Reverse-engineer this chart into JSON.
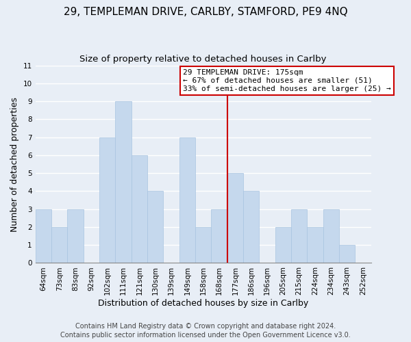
{
  "title": "29, TEMPLEMAN DRIVE, CARLBY, STAMFORD, PE9 4NQ",
  "subtitle": "Size of property relative to detached houses in Carlby",
  "xlabel": "Distribution of detached houses by size in Carlby",
  "ylabel": "Number of detached properties",
  "bar_labels": [
    "64sqm",
    "73sqm",
    "83sqm",
    "92sqm",
    "102sqm",
    "111sqm",
    "121sqm",
    "130sqm",
    "139sqm",
    "149sqm",
    "158sqm",
    "168sqm",
    "177sqm",
    "186sqm",
    "196sqm",
    "205sqm",
    "215sqm",
    "224sqm",
    "234sqm",
    "243sqm",
    "252sqm"
  ],
  "bar_values": [
    3,
    2,
    3,
    0,
    7,
    9,
    6,
    4,
    0,
    7,
    2,
    3,
    5,
    4,
    0,
    2,
    3,
    2,
    3,
    1,
    0
  ],
  "bar_color": "#c5d8ed",
  "bar_edge_color": "#a8c4e0",
  "background_color": "#e8eef6",
  "plot_bg_color": "#e8eef6",
  "grid_color": "#ffffff",
  "vline_position": 12.0,
  "vline_color": "#cc0000",
  "annotation_title": "29 TEMPLEMAN DRIVE: 175sqm",
  "annotation_line1": "← 67% of detached houses are smaller (51)",
  "annotation_line2": "33% of semi-detached houses are larger (25) →",
  "annotation_box_color": "#ffffff",
  "annotation_border_color": "#cc0000",
  "ylim": [
    0,
    11
  ],
  "yticks": [
    0,
    1,
    2,
    3,
    4,
    5,
    6,
    7,
    8,
    9,
    10,
    11
  ],
  "footer_line1": "Contains HM Land Registry data © Crown copyright and database right 2024.",
  "footer_line2": "Contains public sector information licensed under the Open Government Licence v3.0.",
  "title_fontsize": 11,
  "subtitle_fontsize": 9.5,
  "axis_label_fontsize": 9,
  "tick_fontsize": 7.5,
  "annotation_fontsize": 8,
  "footer_fontsize": 7
}
